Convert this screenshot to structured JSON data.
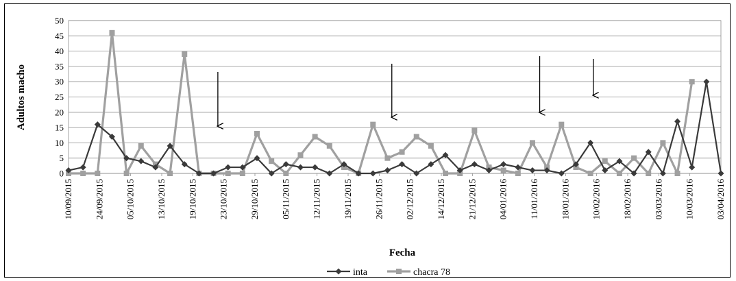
{
  "chart_data": {
    "type": "line",
    "title": "",
    "xlabel": "Fecha",
    "ylabel": "Adultos macho",
    "ylim": [
      0,
      50
    ],
    "yticks": [
      0,
      5,
      10,
      15,
      20,
      25,
      30,
      35,
      40,
      45,
      50
    ],
    "grid": true,
    "legend_position": "bottom",
    "x_tick_labels": [
      "10/09/2015",
      "24/09/2015",
      "05/10/2015",
      "13/10/2015",
      "19/10/2015",
      "23/10/2015",
      "29/10/2015",
      "05/11/2015",
      "12/11/2015",
      "19/11/2015",
      "26/11/2015",
      "02/12/2015",
      "14/12/2015",
      "21/12/2015",
      "04/01/2016",
      "11/01/2016",
      "18/01/2016",
      "10/02/2016",
      "18/02/2016",
      "03/03/2016",
      "10/03/2016",
      "03/04/2016"
    ],
    "series": [
      {
        "name": "inta",
        "color": "#3a3a3a",
        "marker": "diamond",
        "values": [
          1,
          2,
          16,
          12,
          5,
          4,
          2,
          9,
          3,
          0,
          0,
          2,
          2,
          5,
          0,
          3,
          2,
          2,
          0,
          3,
          0,
          0,
          1,
          3,
          0,
          3,
          6,
          1,
          3,
          1,
          3,
          2,
          1,
          1,
          0,
          3,
          10,
          1,
          4,
          0,
          7,
          0,
          17,
          2,
          30,
          0
        ]
      },
      {
        "name": "chacra 78",
        "color": "#a0a0a0",
        "marker": "square",
        "values": [
          0,
          0,
          0,
          46,
          0,
          9,
          3,
          0,
          39,
          0,
          0,
          0,
          0,
          13,
          4,
          0,
          6,
          12,
          9,
          2,
          0,
          16,
          5,
          7,
          12,
          9,
          0,
          0,
          14,
          2,
          1,
          0,
          10,
          2,
          16,
          2,
          0,
          4,
          0,
          5,
          0,
          10,
          0,
          30
        ]
      }
    ],
    "annotations": [
      {
        "type": "arrow",
        "x_index": 10.3
      },
      {
        "type": "arrow",
        "x_index": 22.3
      },
      {
        "type": "arrow",
        "x_index": 32.5
      },
      {
        "type": "arrow",
        "x_index": 36.2
      }
    ]
  }
}
